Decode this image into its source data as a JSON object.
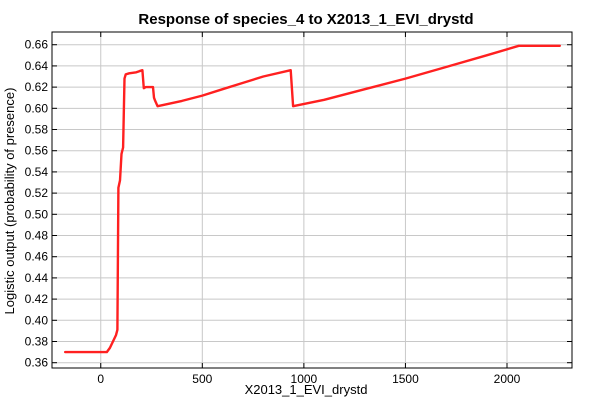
{
  "chart_data": {
    "type": "line",
    "title": "Response of species_4 to X2013_1_EVI_drystd",
    "xlabel": "X2013_1_EVI_drystd",
    "ylabel": "Logistic output (probability of presence)",
    "xlim": [
      -240,
      2320
    ],
    "ylim": [
      0.355,
      0.672
    ],
    "xticks": [
      0,
      500,
      1000,
      1500,
      2000
    ],
    "xtick_labels": [
      "0",
      "500",
      "1000",
      "1500",
      "2000"
    ],
    "yticks": [
      0.36,
      0.38,
      0.4,
      0.42,
      0.44,
      0.46,
      0.48,
      0.5,
      0.52,
      0.54,
      0.56,
      0.58,
      0.6,
      0.62,
      0.64,
      0.66
    ],
    "ytick_labels": [
      "0.36",
      "0.38",
      "0.40",
      "0.42",
      "0.44",
      "0.46",
      "0.48",
      "0.50",
      "0.52",
      "0.54",
      "0.56",
      "0.58",
      "0.60",
      "0.62",
      "0.64",
      "0.66"
    ],
    "grid": true,
    "legend": "none",
    "series": [
      {
        "color": "#ff2020",
        "points": [
          [
            -175,
            0.37
          ],
          [
            30,
            0.37
          ],
          [
            45,
            0.374
          ],
          [
            75,
            0.386
          ],
          [
            82,
            0.391
          ],
          [
            87,
            0.525
          ],
          [
            95,
            0.532
          ],
          [
            102,
            0.557
          ],
          [
            110,
            0.563
          ],
          [
            117,
            0.628
          ],
          [
            123,
            0.632
          ],
          [
            140,
            0.633
          ],
          [
            175,
            0.634
          ],
          [
            190,
            0.635
          ],
          [
            205,
            0.636
          ],
          [
            212,
            0.619
          ],
          [
            222,
            0.62
          ],
          [
            240,
            0.62
          ],
          [
            257,
            0.62
          ],
          [
            262,
            0.61
          ],
          [
            268,
            0.607
          ],
          [
            280,
            0.602
          ],
          [
            400,
            0.607
          ],
          [
            500,
            0.612
          ],
          [
            600,
            0.618
          ],
          [
            700,
            0.624
          ],
          [
            800,
            0.63
          ],
          [
            935,
            0.636
          ],
          [
            947,
            0.602
          ],
          [
            1100,
            0.608
          ],
          [
            1300,
            0.618
          ],
          [
            1500,
            0.628
          ],
          [
            1700,
            0.639
          ],
          [
            1900,
            0.65
          ],
          [
            2058,
            0.659
          ],
          [
            2260,
            0.659
          ]
        ]
      }
    ]
  }
}
